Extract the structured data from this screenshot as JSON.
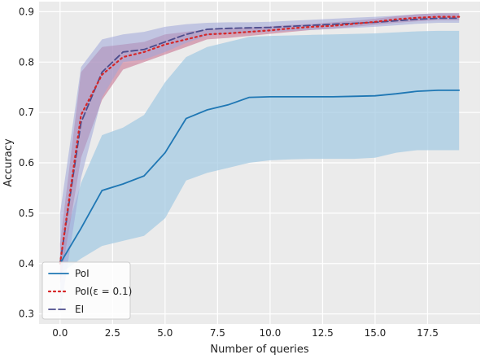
{
  "chart_data": {
    "type": "line",
    "xlabel": "Number of queries",
    "ylabel": "Accuracy",
    "xlim": [
      -1,
      20
    ],
    "ylim": [
      0.28,
      0.92
    ],
    "x_ticks": [
      0,
      2.5,
      5,
      7.5,
      10,
      12.5,
      15,
      17.5
    ],
    "x_tick_labels": [
      "0.0",
      "2.5",
      "5.0",
      "7.5",
      "10.0",
      "12.5",
      "15.0",
      "17.5"
    ],
    "y_ticks": [
      0.3,
      0.4,
      0.5,
      0.6,
      0.7,
      0.8,
      0.9
    ],
    "y_tick_labels": [
      "0.3",
      "0.4",
      "0.5",
      "0.6",
      "0.7",
      "0.8",
      "0.9"
    ],
    "grid": true,
    "legend_position": "bottom-left",
    "background_color": "#ebebeb",
    "series": [
      {
        "name": "PoI",
        "color": "#1f77b4",
        "line_style": "solid",
        "band_color": "#a6cbe3",
        "x": [
          0,
          1,
          2,
          3,
          4,
          5,
          6,
          7,
          8,
          9,
          10,
          11,
          12,
          13,
          14,
          15,
          16,
          17,
          18,
          19
        ],
        "values": [
          0.4,
          0.47,
          0.545,
          0.558,
          0.574,
          0.62,
          0.688,
          0.705,
          0.715,
          0.73,
          0.731,
          0.731,
          0.731,
          0.731,
          0.732,
          0.733,
          0.737,
          0.742,
          0.744,
          0.744
        ],
        "lower": [
          0.38,
          0.41,
          0.435,
          0.445,
          0.455,
          0.49,
          0.565,
          0.58,
          0.59,
          0.6,
          0.605,
          0.607,
          0.608,
          0.608,
          0.608,
          0.61,
          0.62,
          0.625,
          0.625,
          0.625
        ],
        "upper": [
          0.42,
          0.56,
          0.655,
          0.67,
          0.695,
          0.76,
          0.81,
          0.83,
          0.84,
          0.85,
          0.852,
          0.853,
          0.854,
          0.855,
          0.856,
          0.857,
          0.859,
          0.861,
          0.862,
          0.862
        ]
      },
      {
        "name": "PoI(ε = 0.1)",
        "color": "#d62728",
        "line_style": "dotted",
        "band_color": "#c46a8a",
        "x": [
          0,
          1,
          2,
          3,
          4,
          5,
          6,
          7,
          8,
          9,
          10,
          11,
          12,
          13,
          14,
          15,
          16,
          17,
          18,
          19
        ],
        "values": [
          0.4,
          0.695,
          0.775,
          0.81,
          0.82,
          0.835,
          0.845,
          0.855,
          0.857,
          0.86,
          0.863,
          0.867,
          0.87,
          0.872,
          0.876,
          0.88,
          0.885,
          0.888,
          0.89,
          0.89
        ],
        "lower": [
          0.36,
          0.61,
          0.725,
          0.785,
          0.8,
          0.815,
          0.83,
          0.845,
          0.848,
          0.852,
          0.856,
          0.86,
          0.864,
          0.866,
          0.87,
          0.874,
          0.878,
          0.881,
          0.883,
          0.883
        ],
        "upper": [
          0.44,
          0.78,
          0.83,
          0.835,
          0.84,
          0.855,
          0.86,
          0.865,
          0.867,
          0.869,
          0.871,
          0.874,
          0.876,
          0.879,
          0.882,
          0.886,
          0.891,
          0.895,
          0.897,
          0.897
        ]
      },
      {
        "name": "EI",
        "color": "#4c4c8c",
        "line_style": "dashed",
        "band_color": "#9fa6d8",
        "x": [
          0,
          1,
          2,
          3,
          4,
          5,
          6,
          7,
          8,
          9,
          10,
          11,
          12,
          13,
          14,
          15,
          16,
          17,
          18,
          19
        ],
        "values": [
          0.4,
          0.68,
          0.78,
          0.82,
          0.825,
          0.84,
          0.855,
          0.865,
          0.867,
          0.868,
          0.869,
          0.871,
          0.873,
          0.875,
          0.877,
          0.879,
          0.882,
          0.885,
          0.887,
          0.887
        ],
        "lower": [
          0.3,
          0.57,
          0.73,
          0.8,
          0.805,
          0.82,
          0.838,
          0.852,
          0.856,
          0.858,
          0.86,
          0.862,
          0.864,
          0.866,
          0.868,
          0.87,
          0.873,
          0.876,
          0.878,
          0.878
        ],
        "upper": [
          0.5,
          0.79,
          0.845,
          0.855,
          0.86,
          0.87,
          0.875,
          0.878,
          0.879,
          0.879,
          0.88,
          0.882,
          0.884,
          0.886,
          0.888,
          0.89,
          0.892,
          0.895,
          0.897,
          0.897
        ]
      }
    ]
  }
}
